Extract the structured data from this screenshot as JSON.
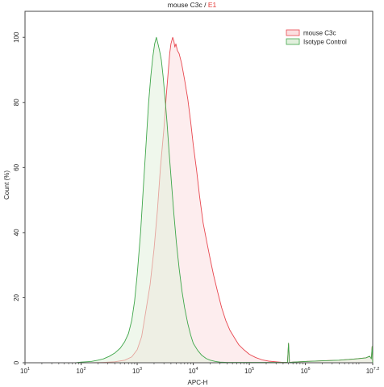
{
  "chart_data": {
    "type": "area",
    "title_main": "mouse C3c / ",
    "title_gate": "E1",
    "xlabel": "APC-H",
    "ylabel": "Count (%)",
    "x_scale": "log",
    "xlim": [
      10,
      15848932
    ],
    "ylim": [
      0,
      108
    ],
    "x_ticks": [
      {
        "base": "10",
        "exp": "1",
        "value": 10
      },
      {
        "base": "10",
        "exp": "2",
        "value": 100
      },
      {
        "base": "10",
        "exp": "3",
        "value": 1000
      },
      {
        "base": "10",
        "exp": "4",
        "value": 10000
      },
      {
        "base": "10",
        "exp": "5",
        "value": 100000
      },
      {
        "base": "10",
        "exp": "6",
        "value": 1000000
      },
      {
        "base": "10",
        "exp": "7.2",
        "value": 15848932
      }
    ],
    "y_ticks": [
      {
        "label": "0",
        "value": 0
      },
      {
        "label": "20",
        "value": 20
      },
      {
        "label": "40",
        "value": 40
      },
      {
        "label": "60",
        "value": 60
      },
      {
        "label": "80",
        "value": 80
      },
      {
        "label": "100",
        "value": 100
      }
    ],
    "grid": false,
    "legend_position": "top-right",
    "series": [
      {
        "name": "mouse C3c",
        "stroke": "#e8474f",
        "fill": "#fbdfe0",
        "x": [
          10,
          20,
          40,
          80,
          150,
          250,
          400,
          600,
          800,
          1000,
          1200,
          1400,
          1700,
          2000,
          2300,
          2600,
          3000,
          3300,
          3600,
          3800,
          4000,
          4300,
          4500,
          4700,
          4900,
          5200,
          5600,
          6200,
          7000,
          8000,
          9000,
          10000,
          11500,
          13000,
          15000,
          17500,
          20000,
          23000,
          27000,
          32000,
          38000,
          45000,
          55000,
          65000,
          80000,
          100000,
          130000,
          170000,
          220000,
          300000,
          400000,
          480000,
          500000,
          520000,
          600000,
          1000000,
          2000000,
          4000000,
          8000000,
          12000000,
          14000000,
          15000000,
          15500000,
          15848932
        ],
        "y": [
          0,
          0,
          0,
          0,
          0,
          0.1,
          0.3,
          0.8,
          1.8,
          4,
          8,
          15,
          24,
          35,
          47,
          60,
          72,
          82,
          90,
          95,
          98,
          100,
          99,
          97,
          98,
          96,
          95,
          92,
          87,
          81,
          74,
          67,
          59,
          51,
          43,
          37,
          32,
          27,
          22,
          17,
          13,
          10,
          7.5,
          5.5,
          4,
          2.6,
          1.6,
          0.9,
          0.5,
          0.3,
          0.1,
          0.1,
          6,
          0.1,
          0.2,
          0.4,
          0.6,
          0.8,
          1.2,
          1.5,
          2,
          1.2,
          5,
          0
        ],
        "labels": []
      },
      {
        "name": "Isotype Control",
        "stroke": "#3fa64a",
        "fill": "#e2f0dd",
        "x": [
          10,
          20,
          40,
          80,
          100,
          150,
          200,
          250,
          320,
          400,
          500,
          600,
          700,
          800,
          900,
          1000,
          1150,
          1300,
          1450,
          1600,
          1750,
          1900,
          2050,
          2200,
          2350,
          2500,
          2700,
          2900,
          3150,
          3400,
          3700,
          4100,
          4500,
          5000,
          5600,
          6300,
          7000,
          8000,
          9000,
          10000,
          12000,
          14000,
          17000,
          20000,
          25000,
          30000,
          40000,
          60000,
          100000,
          200000,
          400000,
          480000,
          500000,
          520000,
          600000,
          1000000,
          2000000,
          4000000,
          8000000,
          12000000,
          14000000,
          15000000,
          15500000,
          15848932
        ],
        "y": [
          0,
          0,
          0,
          0,
          0.2,
          0.4,
          0.8,
          1.2,
          2,
          3,
          4.5,
          6.5,
          9,
          13,
          19,
          27,
          40,
          55,
          68,
          80,
          88,
          94,
          98,
          100,
          98,
          96,
          93,
          88,
          81,
          74,
          65,
          55,
          46,
          37,
          29,
          22,
          17,
          12,
          8.5,
          6,
          3.8,
          2.4,
          1.3,
          0.8,
          0.4,
          0.2,
          0.1,
          0.1,
          0.1,
          0.1,
          0.1,
          0.1,
          6,
          0.1,
          0.2,
          0.4,
          0.6,
          0.8,
          1.2,
          1.5,
          2,
          1.2,
          5,
          0
        ],
        "labels": []
      }
    ]
  }
}
